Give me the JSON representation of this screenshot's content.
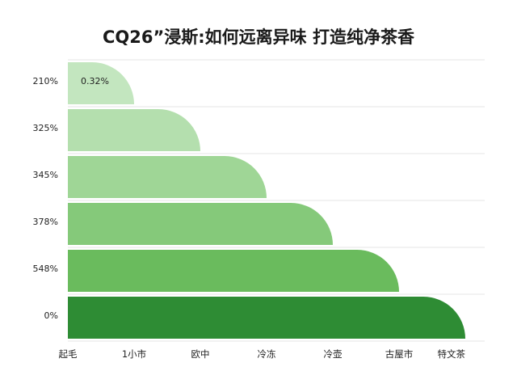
{
  "chart_data": {
    "type": "bar",
    "orientation": "horizontal",
    "title": "CQ26”浸斯:如何远离异味 打造纯净茶香",
    "categories": [
      "210%",
      "325%",
      "345%",
      "378%",
      "548%",
      "0%"
    ],
    "values": [
      1,
      2,
      3,
      4,
      5,
      6
    ],
    "xlim": [
      0,
      6
    ],
    "x_ticks": [
      "起毛",
      "1小市",
      "欧中",
      "冷冻",
      "冷壶",
      "古屋市",
      "特文茶"
    ],
    "data_labels": [
      "0.32%",
      "",
      "",
      "",
      "",
      ""
    ],
    "colors": [
      "#c3e6bf",
      "#b4dfae",
      "#9fd696",
      "#85c97a",
      "#6abb5d",
      "#2e8c34"
    ],
    "grid": true,
    "legend": "none"
  }
}
